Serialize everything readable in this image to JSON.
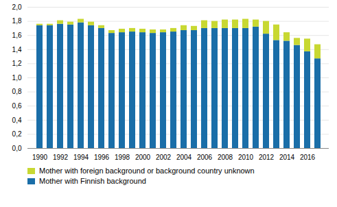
{
  "chart_data": {
    "type": "bar",
    "stacked": true,
    "categories": [
      "1990",
      null,
      "1992",
      null,
      "1994",
      null,
      "1996",
      null,
      "1998",
      null,
      "2000",
      null,
      "2002",
      null,
      "2004",
      null,
      "2006",
      null,
      "2008",
      null,
      "2010",
      null,
      "2012",
      null,
      "2014",
      null,
      "2016",
      null
    ],
    "series": [
      {
        "name": "Mother with Finnish background",
        "color": "#1a6ea8",
        "values": [
          1.74,
          1.74,
          1.76,
          1.75,
          1.78,
          1.74,
          1.7,
          1.63,
          1.64,
          1.65,
          1.64,
          1.63,
          1.64,
          1.65,
          1.67,
          1.67,
          1.7,
          1.7,
          1.7,
          1.7,
          1.7,
          1.72,
          1.62,
          1.53,
          1.52,
          1.46,
          1.37,
          1.27
        ]
      },
      {
        "name": "Mother with foreign background or background country unknown",
        "color": "#c8d832",
        "values": [
          0.02,
          0.02,
          0.05,
          0.04,
          0.05,
          0.05,
          0.04,
          0.04,
          0.05,
          0.05,
          0.05,
          0.05,
          0.04,
          0.05,
          0.07,
          0.06,
          0.11,
          0.1,
          0.12,
          0.12,
          0.13,
          0.1,
          0.18,
          0.22,
          0.12,
          0.1,
          0.18,
          0.2
        ]
      }
    ],
    "ylim": [
      0.0,
      2.0
    ],
    "yticks": [
      {
        "value": 0.0,
        "label": "0,0"
      },
      {
        "value": 0.2,
        "label": "0,2"
      },
      {
        "value": 0.4,
        "label": "0,4"
      },
      {
        "value": 0.6,
        "label": "0,6"
      },
      {
        "value": 0.8,
        "label": "0,8"
      },
      {
        "value": 1.0,
        "label": "1,0"
      },
      {
        "value": 1.2,
        "label": "1,2"
      },
      {
        "value": 1.4,
        "label": "1,4"
      },
      {
        "value": 1.6,
        "label": "1,6"
      },
      {
        "value": 1.8,
        "label": "1,8"
      },
      {
        "value": 2.0,
        "label": "2,0"
      }
    ],
    "grid": true,
    "legend": "lower left"
  }
}
